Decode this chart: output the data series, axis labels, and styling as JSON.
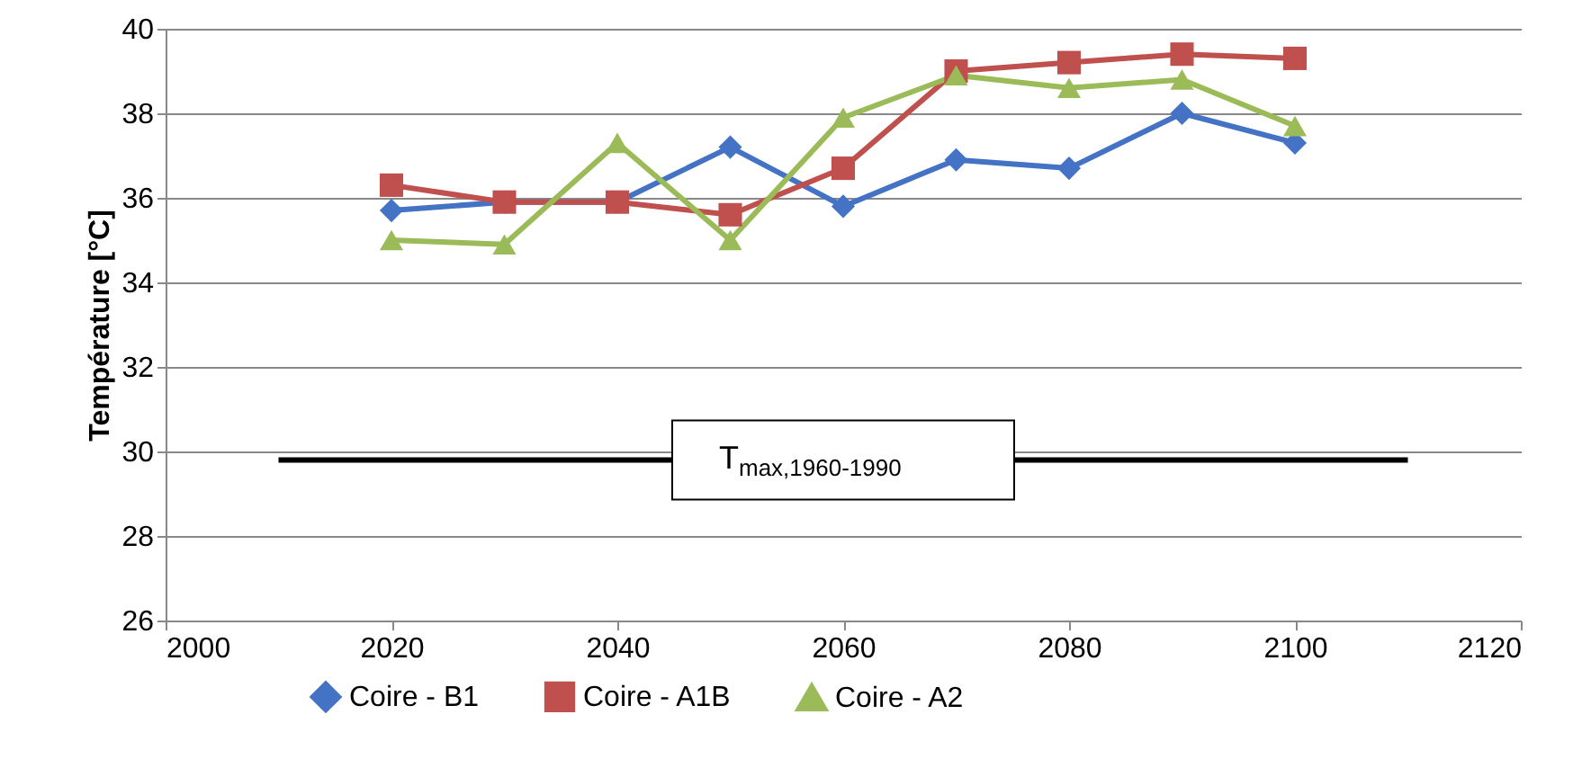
{
  "chart_data": {
    "type": "line",
    "ylabel": "Température [°C]",
    "x": [
      2020,
      2030,
      2040,
      2050,
      2060,
      2070,
      2080,
      2090,
      2100
    ],
    "series": [
      {
        "name": "Coire - B1",
        "color": "#4472c4",
        "marker": "diamond",
        "values": [
          35.7,
          35.9,
          35.9,
          37.2,
          35.8,
          36.9,
          36.7,
          38.0,
          37.3
        ]
      },
      {
        "name": "Coire - A1B",
        "color": "#c0504d",
        "marker": "square",
        "values": [
          36.3,
          35.9,
          35.9,
          35.6,
          36.7,
          39.0,
          39.2,
          39.4,
          39.3
        ]
      },
      {
        "name": "Coire - A2",
        "color": "#9bbb59",
        "marker": "triangle",
        "values": [
          35.0,
          34.9,
          37.3,
          35.0,
          37.9,
          38.9,
          38.6,
          38.8,
          37.7
        ]
      },
      {
        "type": "line",
        "color": "#000000",
        "marker": "none",
        "x": [
          2010,
          2110
        ],
        "values": [
          29.8,
          29.8
        ]
      }
    ],
    "annotations": [
      {
        "text": "T$_{max,1960-1990}$",
        "x": 2060,
        "y": 29.8
      }
    ],
    "xlim": [
      2000,
      2120
    ],
    "xticks": [
      2000,
      2020,
      2040,
      2060,
      2080,
      2100,
      2120
    ],
    "ylim": [
      26,
      40
    ],
    "yticks": [
      26,
      28,
      30,
      32,
      34,
      36,
      38,
      40
    ],
    "grid": "y",
    "legend": "bottom"
  }
}
